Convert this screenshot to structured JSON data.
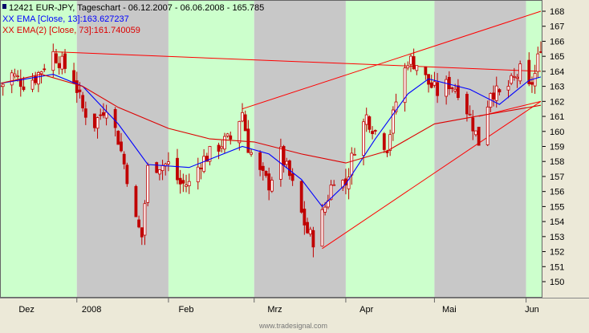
{
  "legend": {
    "line1": "12421  EUR-JPY, Tageschart - 06.12.2007 - 06.06.2008 - 165.785",
    "line2": "XX EMA [Close, 13]:163.627237",
    "line3": "XX EMA(2) [Close, 73]:161.740059"
  },
  "watermark": "www.tradesignal.com",
  "colors": {
    "background_month_a": "#ccffcc",
    "background_month_b": "#c8c8c8",
    "candle": "#c00000",
    "ema13": "#0000ff",
    "ema73": "#dd0000",
    "trendline": "#ff0000",
    "axis_bg": "#ece9d8"
  },
  "chart_data": {
    "type": "candlestick",
    "title": "12421  EUR-JPY, Tageschart - 06.12.2007 - 06.06.2008 - 165.785",
    "x_labels": [
      "Dez",
      "2008",
      "Feb",
      "Mrz",
      "Apr",
      "Mai",
      "Jun"
    ],
    "y_ticks": [
      150,
      151,
      152,
      153,
      154,
      155,
      156,
      157,
      158,
      159,
      160,
      161,
      162,
      163,
      164,
      165,
      166,
      167,
      168
    ],
    "ylim": [
      149.2,
      168.8
    ],
    "months": [
      {
        "label": "Dez",
        "start": "2007-12-06",
        "shade": "green"
      },
      {
        "label": "2008",
        "start": "2008-01-01",
        "shade": "grey"
      },
      {
        "label": "Feb",
        "start": "2008-02-01",
        "shade": "green"
      },
      {
        "label": "Mrz",
        "start": "2008-03-01",
        "shade": "grey"
      },
      {
        "label": "Apr",
        "start": "2008-04-01",
        "shade": "green"
      },
      {
        "label": "Mai",
        "start": "2008-05-01",
        "shade": "grey"
      },
      {
        "label": "Jun",
        "start": "2008-06-01",
        "shade": "green"
      }
    ],
    "close_path": [
      [
        "2007-12-06",
        163.0
      ],
      [
        "2007-12-10",
        163.8
      ],
      [
        "2007-12-14",
        163.2
      ],
      [
        "2007-12-18",
        163.6
      ],
      [
        "2007-12-24",
        165.2
      ],
      [
        "2007-12-27",
        164.5
      ],
      [
        "2007-12-31",
        163.5
      ],
      [
        "2008-01-03",
        161.5
      ],
      [
        "2008-01-07",
        160.5
      ],
      [
        "2008-01-11",
        161.8
      ],
      [
        "2008-01-15",
        159.5
      ],
      [
        "2008-01-18",
        157.0
      ],
      [
        "2008-01-21",
        154.0
      ],
      [
        "2008-01-23",
        153.0
      ],
      [
        "2008-01-25",
        157.5
      ],
      [
        "2008-01-29",
        157.8
      ],
      [
        "2008-02-01",
        157.8
      ],
      [
        "2008-02-05",
        156.5
      ],
      [
        "2008-02-08",
        156.5
      ],
      [
        "2008-02-12",
        158.0
      ],
      [
        "2008-02-15",
        158.5
      ],
      [
        "2008-02-19",
        159.2
      ],
      [
        "2008-02-22",
        159.5
      ],
      [
        "2008-02-26",
        161.3
      ],
      [
        "2008-02-28",
        159.0
      ],
      [
        "2008-03-03",
        157.2
      ],
      [
        "2008-03-06",
        156.5
      ],
      [
        "2008-03-10",
        158.5
      ],
      [
        "2008-03-13",
        157.0
      ],
      [
        "2008-03-17",
        154.5
      ],
      [
        "2008-03-19",
        153.3
      ],
      [
        "2008-03-21",
        152.8
      ],
      [
        "2008-03-25",
        155.0
      ],
      [
        "2008-03-28",
        157.0
      ],
      [
        "2008-04-01",
        156.5
      ],
      [
        "2008-04-04",
        159.0
      ],
      [
        "2008-04-08",
        161.0
      ],
      [
        "2008-04-11",
        160.0
      ],
      [
        "2008-04-15",
        159.0
      ],
      [
        "2008-04-18",
        162.0
      ],
      [
        "2008-04-22",
        164.8
      ],
      [
        "2008-04-25",
        164.5
      ],
      [
        "2008-04-29",
        163.2
      ],
      [
        "2008-05-02",
        162.6
      ],
      [
        "2008-05-06",
        163.2
      ],
      [
        "2008-05-09",
        162.8
      ],
      [
        "2008-05-13",
        161.0
      ],
      [
        "2008-05-16",
        159.3
      ],
      [
        "2008-05-20",
        162.8
      ],
      [
        "2008-05-23",
        162.4
      ],
      [
        "2008-05-27",
        163.2
      ],
      [
        "2008-05-30",
        164.0
      ],
      [
        "2008-06-02",
        162.8
      ],
      [
        "2008-06-04",
        163.8
      ],
      [
        "2008-06-06",
        165.785
      ]
    ],
    "series": [
      {
        "name": "XX EMA [Close, 13]",
        "last": 163.627237,
        "points": [
          [
            "2007-12-06",
            163.2
          ],
          [
            "2007-12-24",
            163.8
          ],
          [
            "2008-01-03",
            163.0
          ],
          [
            "2008-01-15",
            160.5
          ],
          [
            "2008-01-25",
            157.8
          ],
          [
            "2008-02-08",
            157.6
          ],
          [
            "2008-02-26",
            159.0
          ],
          [
            "2008-03-06",
            158.5
          ],
          [
            "2008-03-17",
            156.8
          ],
          [
            "2008-03-24",
            155.0
          ],
          [
            "2008-04-01",
            156.5
          ],
          [
            "2008-04-11",
            159.5
          ],
          [
            "2008-04-22",
            162.5
          ],
          [
            "2008-04-29",
            163.5
          ],
          [
            "2008-05-13",
            162.8
          ],
          [
            "2008-05-23",
            161.8
          ],
          [
            "2008-06-02",
            163.4
          ],
          [
            "2008-06-06",
            163.627
          ]
        ]
      },
      {
        "name": "XX EMA(2) [Close, 73]",
        "last": 161.740059,
        "points": [
          [
            "2007-12-06",
            163.2
          ],
          [
            "2007-12-20",
            163.8
          ],
          [
            "2008-01-03",
            163.0
          ],
          [
            "2008-01-15",
            161.6
          ],
          [
            "2008-02-01",
            160.2
          ],
          [
            "2008-02-15",
            159.5
          ],
          [
            "2008-03-01",
            159.3
          ],
          [
            "2008-03-17",
            158.5
          ],
          [
            "2008-04-01",
            157.9
          ],
          [
            "2008-04-15",
            158.7
          ],
          [
            "2008-05-01",
            160.5
          ],
          [
            "2008-05-15",
            161.0
          ],
          [
            "2008-06-06",
            161.74
          ]
        ]
      }
    ],
    "trendlines": [
      [
        [
          "2007-12-24",
          165.3
        ],
        [
          "2008-06-06",
          164.0
        ]
      ],
      [
        [
          "2008-02-26",
          161.5
        ],
        [
          "2008-06-06",
          168.0
        ]
      ],
      [
        [
          "2008-03-24",
          152.2
        ],
        [
          "2008-06-06",
          162.0
        ]
      ],
      [
        [
          "2008-05-16",
          161.0
        ],
        [
          "2008-06-06",
          162.0
        ]
      ]
    ]
  }
}
